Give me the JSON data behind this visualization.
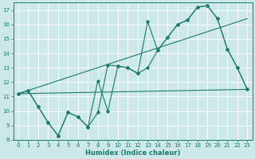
{
  "xlabel": "Humidex (Indice chaleur)",
  "xlim": [
    -0.5,
    23.5
  ],
  "ylim": [
    8,
    17.5
  ],
  "xticks": [
    0,
    1,
    2,
    3,
    4,
    5,
    6,
    7,
    8,
    9,
    10,
    11,
    12,
    13,
    14,
    15,
    16,
    17,
    18,
    19,
    20,
    21,
    22,
    23
  ],
  "yticks": [
    8,
    9,
    10,
    11,
    12,
    13,
    14,
    15,
    16,
    17
  ],
  "bg_color": "#cce8e8",
  "line_color": "#1a7a6e",
  "grid_color": "#ffffff",
  "line1_x": [
    0,
    1,
    2,
    3,
    4,
    5,
    6,
    7,
    8,
    9,
    10,
    11,
    12,
    13,
    14,
    15,
    16,
    17,
    18,
    19,
    20,
    21,
    22,
    23
  ],
  "line1_y": [
    11.2,
    11.4,
    10.3,
    9.2,
    8.3,
    9.9,
    9.6,
    8.9,
    12.1,
    10.0,
    13.1,
    13.0,
    12.6,
    16.2,
    14.2,
    15.1,
    16.0,
    16.3,
    17.2,
    17.3,
    16.4,
    14.3,
    13.0,
    11.5
  ],
  "line2_x": [
    0,
    1,
    2,
    3,
    4,
    5,
    6,
    7,
    8,
    9,
    10,
    11,
    12,
    13,
    14,
    15,
    16,
    17,
    18,
    19,
    20,
    21,
    22,
    23
  ],
  "line2_y": [
    11.2,
    11.4,
    10.3,
    9.2,
    8.3,
    9.9,
    9.6,
    8.9,
    9.9,
    13.2,
    13.1,
    13.0,
    12.6,
    13.0,
    14.2,
    15.1,
    16.0,
    16.3,
    17.2,
    17.3,
    16.4,
    14.3,
    13.0,
    11.5
  ],
  "line3_x": [
    0,
    23
  ],
  "line3_y": [
    11.2,
    11.5
  ],
  "line4_x": [
    0,
    23
  ],
  "line4_y": [
    11.2,
    16.4
  ]
}
